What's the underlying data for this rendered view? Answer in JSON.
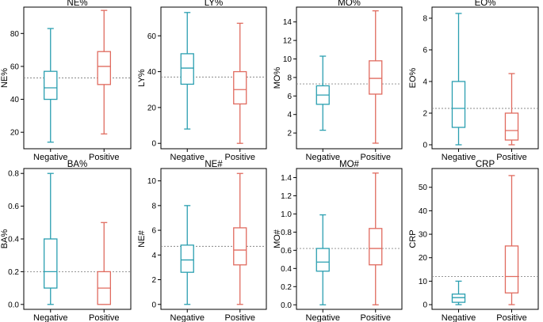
{
  "colors": {
    "negative": "#2a9fb0",
    "positive": "#e06b5f",
    "reference_line": "#888888",
    "axis": "#000000"
  },
  "chart_data": [
    {
      "type": "box",
      "title": "NE%",
      "ylabel": "NE%",
      "categories": [
        "Negative",
        "Positive"
      ],
      "ylim": [
        10,
        96
      ],
      "yticks": [
        20,
        40,
        60,
        80
      ],
      "reference_line": 53,
      "boxes": [
        {
          "name": "Negative",
          "min": 14,
          "q1": 40,
          "median": 47,
          "q3": 57,
          "max": 83
        },
        {
          "name": "Positive",
          "min": 19,
          "q1": 49,
          "median": 60,
          "q3": 69,
          "max": 94
        }
      ]
    },
    {
      "type": "box",
      "title": "LY%",
      "ylabel": "LY%",
      "categories": [
        "Negative",
        "Positive"
      ],
      "ylim": [
        -3,
        76
      ],
      "yticks": [
        0,
        20,
        40,
        60
      ],
      "reference_line": 37,
      "boxes": [
        {
          "name": "Negative",
          "min": 8,
          "q1": 33,
          "median": 42,
          "q3": 50,
          "max": 73
        },
        {
          "name": "Positive",
          "min": 0,
          "q1": 22,
          "median": 30,
          "q3": 40,
          "max": 67
        }
      ]
    },
    {
      "type": "box",
      "title": "MO%",
      "ylabel": "MO%",
      "categories": [
        "Negative",
        "Positive"
      ],
      "ylim": [
        0.3,
        15.6
      ],
      "yticks": [
        2,
        4,
        6,
        8,
        10,
        12,
        14
      ],
      "reference_line": 7.3,
      "boxes": [
        {
          "name": "Negative",
          "min": 2.3,
          "q1": 5.1,
          "median": 6.1,
          "q3": 7.1,
          "max": 10.3
        },
        {
          "name": "Positive",
          "min": 0.9,
          "q1": 6.2,
          "median": 7.9,
          "q3": 9.8,
          "max": 15.2
        }
      ]
    },
    {
      "type": "box",
      "title": "EO%",
      "ylabel": "EO%",
      "categories": [
        "Negative",
        "Positive"
      ],
      "ylim": [
        -0.25,
        8.7
      ],
      "yticks": [
        0,
        2,
        4,
        6,
        8
      ],
      "reference_line": 2.3,
      "boxes": [
        {
          "name": "Negative",
          "min": 0,
          "q1": 1.1,
          "median": 2.3,
          "q3": 4.0,
          "max": 8.3
        },
        {
          "name": "Positive",
          "min": 0,
          "q1": 0.3,
          "median": 0.9,
          "q3": 2.0,
          "max": 4.5
        }
      ]
    },
    {
      "type": "box",
      "title": "BA%",
      "ylabel": "BA%",
      "categories": [
        "Negative",
        "Positive"
      ],
      "ylim": [
        -0.03,
        0.83
      ],
      "yticks": [
        0.0,
        0.2,
        0.4,
        0.6,
        0.8
      ],
      "reference_line": 0.2,
      "boxes": [
        {
          "name": "Negative",
          "min": 0,
          "q1": 0.1,
          "median": 0.2,
          "q3": 0.4,
          "max": 0.8
        },
        {
          "name": "Positive",
          "min": 0,
          "q1": 0,
          "median": 0.1,
          "q3": 0.2,
          "max": 0.5
        }
      ]
    },
    {
      "type": "box",
      "title": "NE#",
      "ylabel": "NE#",
      "categories": [
        "Negative",
        "Positive"
      ],
      "ylim": [
        -0.4,
        11.0
      ],
      "yticks": [
        0,
        2,
        4,
        6,
        8,
        10
      ],
      "reference_line": 4.7,
      "boxes": [
        {
          "name": "Negative",
          "min": 0,
          "q1": 2.6,
          "median": 3.6,
          "q3": 4.8,
          "max": 8.0
        },
        {
          "name": "Positive",
          "min": 0,
          "q1": 3.2,
          "median": 4.4,
          "q3": 6.2,
          "max": 10.6
        }
      ]
    },
    {
      "type": "box",
      "title": "MO#",
      "ylabel": "MO#",
      "categories": [
        "Negative",
        "Positive"
      ],
      "ylim": [
        -0.05,
        1.5
      ],
      "yticks": [
        0.0,
        0.2,
        0.4,
        0.6,
        0.8,
        1.0,
        1.2,
        1.4
      ],
      "reference_line": 0.62,
      "boxes": [
        {
          "name": "Negative",
          "min": 0,
          "q1": 0.37,
          "median": 0.47,
          "q3": 0.62,
          "max": 0.99
        },
        {
          "name": "Positive",
          "min": 0,
          "q1": 0.44,
          "median": 0.62,
          "q3": 0.84,
          "max": 1.45
        }
      ]
    },
    {
      "type": "box",
      "title": "CRP",
      "ylabel": "CRP",
      "categories": [
        "Negative",
        "Positive"
      ],
      "ylim": [
        -2,
        58
      ],
      "yticks": [
        0,
        10,
        20,
        30,
        40,
        50
      ],
      "reference_line": 12,
      "boxes": [
        {
          "name": "Negative",
          "min": 0,
          "q1": 1,
          "median": 3,
          "q3": 4.5,
          "max": 10
        },
        {
          "name": "Positive",
          "min": 0,
          "q1": 5,
          "median": 12,
          "q3": 25,
          "max": 55
        }
      ]
    }
  ]
}
